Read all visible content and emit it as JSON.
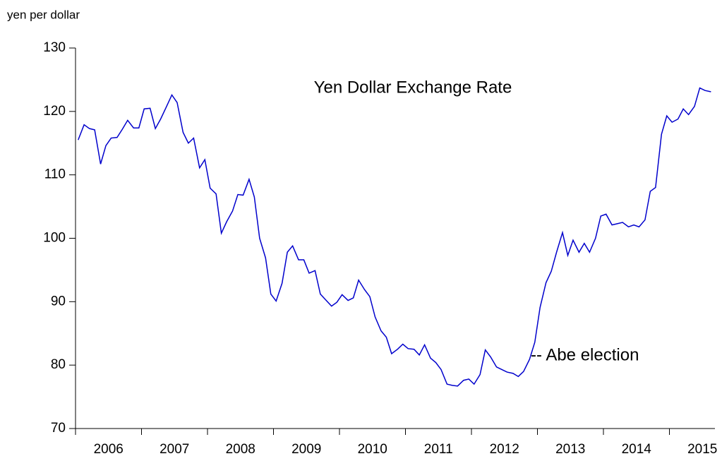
{
  "chart_data": {
    "type": "line",
    "title": "Yen Dollar Exchange Rate",
    "y_label": "yen per dollar",
    "annotation": "-- Abe election",
    "x": [
      2006.04,
      2006.13,
      2006.21,
      2006.29,
      2006.38,
      2006.46,
      2006.54,
      2006.63,
      2006.71,
      2006.79,
      2006.88,
      2006.96,
      2007.04,
      2007.13,
      2007.21,
      2007.29,
      2007.38,
      2007.46,
      2007.54,
      2007.63,
      2007.71,
      2007.79,
      2007.88,
      2007.96,
      2008.04,
      2008.13,
      2008.21,
      2008.29,
      2008.38,
      2008.46,
      2008.54,
      2008.63,
      2008.71,
      2008.79,
      2008.88,
      2008.96,
      2009.04,
      2009.13,
      2009.21,
      2009.29,
      2009.38,
      2009.46,
      2009.54,
      2009.63,
      2009.71,
      2009.79,
      2009.88,
      2009.96,
      2010.04,
      2010.13,
      2010.21,
      2010.29,
      2010.38,
      2010.46,
      2010.54,
      2010.63,
      2010.71,
      2010.79,
      2010.88,
      2010.96,
      2011.04,
      2011.13,
      2011.21,
      2011.29,
      2011.38,
      2011.46,
      2011.54,
      2011.63,
      2011.71,
      2011.79,
      2011.88,
      2011.96,
      2012.04,
      2012.13,
      2012.21,
      2012.29,
      2012.38,
      2012.46,
      2012.54,
      2012.63,
      2012.71,
      2012.79,
      2012.88,
      2012.96,
      2013.04,
      2013.13,
      2013.21,
      2013.29,
      2013.38,
      2013.46,
      2013.54,
      2013.63,
      2013.71,
      2013.79,
      2013.88,
      2013.96,
      2014.04,
      2014.13,
      2014.21,
      2014.29,
      2014.38,
      2014.46,
      2014.54,
      2014.63,
      2014.71,
      2014.79,
      2014.88,
      2014.96,
      2015.04,
      2015.13,
      2015.21,
      2015.29,
      2015.38,
      2015.46,
      2015.54,
      2015.63
    ],
    "series": [
      {
        "name": "Yen Dollar Exchange Rate",
        "color": "#0000cc",
        "values": [
          115.5,
          117.9,
          117.3,
          117.1,
          111.7,
          114.6,
          115.8,
          115.9,
          117.2,
          118.6,
          117.4,
          117.4,
          120.4,
          120.5,
          117.3,
          118.8,
          120.8,
          122.6,
          121.4,
          116.7,
          115.0,
          115.8,
          111.1,
          112.4,
          107.9,
          107.0,
          100.8,
          102.6,
          104.3,
          106.9,
          106.8,
          109.3,
          106.5,
          100.0,
          96.9,
          91.2,
          90.1,
          92.9,
          97.8,
          98.8,
          96.6,
          96.6,
          94.5,
          94.9,
          91.2,
          90.3,
          89.3,
          89.9,
          91.1,
          90.2,
          90.6,
          93.4,
          91.9,
          90.8,
          87.6,
          85.4,
          84.4,
          81.8,
          82.5,
          83.3,
          82.6,
          82.5,
          81.6,
          83.2,
          81.1,
          80.4,
          79.3,
          77.0,
          76.8,
          76.7,
          77.6,
          77.8,
          77.0,
          78.5,
          82.4,
          81.3,
          79.7,
          79.3,
          78.9,
          78.7,
          78.2,
          79.0,
          80.9,
          83.6,
          89.1,
          93.0,
          94.8,
          97.8,
          100.9,
          97.3,
          99.7,
          97.8,
          99.2,
          97.8,
          100.0,
          103.5,
          103.8,
          102.1,
          102.3,
          102.5,
          101.8,
          102.1,
          101.8,
          102.9,
          107.4,
          108.0,
          116.4,
          119.3,
          118.3,
          118.8,
          120.4,
          119.5,
          120.8,
          123.7,
          123.3,
          123.1
        ]
      }
    ],
    "xlim": [
      2006,
      2015.69
    ],
    "xticks": [
      2006,
      2007,
      2008,
      2009,
      2010,
      2011,
      2012,
      2013,
      2014,
      2015
    ],
    "ylim": [
      70,
      130
    ],
    "yticks": [
      70,
      80,
      90,
      100,
      110,
      120,
      130
    ],
    "grid": false
  }
}
